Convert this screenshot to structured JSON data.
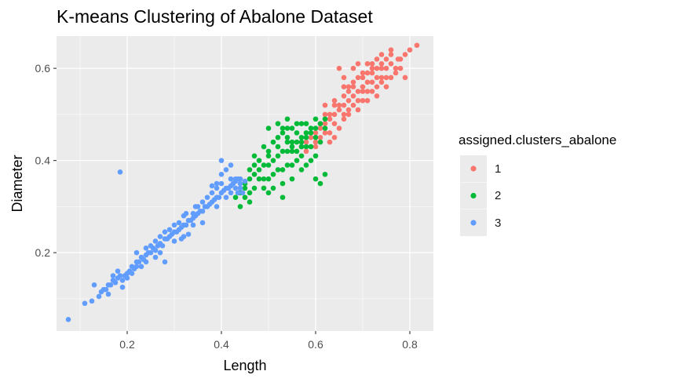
{
  "chart_data": {
    "type": "scatter",
    "title": "K-means Clustering of Abalone Dataset",
    "xlabel": "Length",
    "ylabel": "Diameter",
    "xlim": [
      0.05,
      0.85
    ],
    "ylim": [
      0.03,
      0.67
    ],
    "x_ticks": [
      0.2,
      0.4,
      0.6,
      0.8
    ],
    "y_ticks": [
      0.2,
      0.4,
      0.6
    ],
    "x_tick_labels": [
      "0.2",
      "0.4",
      "0.6",
      "0.8"
    ],
    "y_tick_labels": [
      "0.2",
      "0.4",
      "0.6"
    ],
    "grid": true,
    "legend": {
      "title": "assigned.clusters_abalone",
      "position": "right",
      "entries": [
        "1",
        "2",
        "3"
      ]
    },
    "series": [
      {
        "name": "1",
        "color": "#F8766D",
        "points": [
          [
            0.6,
            0.46
          ],
          [
            0.61,
            0.47
          ],
          [
            0.62,
            0.48
          ],
          [
            0.6,
            0.44
          ],
          [
            0.63,
            0.5
          ],
          [
            0.64,
            0.5
          ],
          [
            0.65,
            0.52
          ],
          [
            0.66,
            0.52
          ],
          [
            0.65,
            0.51
          ],
          [
            0.67,
            0.53
          ],
          [
            0.68,
            0.54
          ],
          [
            0.67,
            0.55
          ],
          [
            0.69,
            0.55
          ],
          [
            0.7,
            0.56
          ],
          [
            0.71,
            0.57
          ],
          [
            0.72,
            0.57
          ],
          [
            0.73,
            0.58
          ],
          [
            0.72,
            0.59
          ],
          [
            0.74,
            0.6
          ],
          [
            0.75,
            0.6
          ],
          [
            0.76,
            0.61
          ],
          [
            0.74,
            0.58
          ],
          [
            0.7,
            0.55
          ],
          [
            0.66,
            0.5
          ],
          [
            0.64,
            0.52
          ],
          [
            0.68,
            0.57
          ],
          [
            0.69,
            0.58
          ],
          [
            0.71,
            0.59
          ],
          [
            0.73,
            0.6
          ],
          [
            0.63,
            0.49
          ],
          [
            0.62,
            0.46
          ],
          [
            0.61,
            0.45
          ],
          [
            0.64,
            0.48
          ],
          [
            0.66,
            0.49
          ],
          [
            0.68,
            0.52
          ],
          [
            0.7,
            0.53
          ],
          [
            0.72,
            0.55
          ],
          [
            0.74,
            0.57
          ],
          [
            0.76,
            0.58
          ],
          [
            0.77,
            0.6
          ],
          [
            0.78,
            0.62
          ],
          [
            0.79,
            0.63
          ],
          [
            0.76,
            0.64
          ],
          [
            0.8,
            0.64
          ],
          [
            0.815,
            0.65
          ],
          [
            0.775,
            0.62
          ],
          [
            0.71,
            0.61
          ],
          [
            0.73,
            0.62
          ],
          [
            0.69,
            0.61
          ],
          [
            0.68,
            0.6
          ],
          [
            0.65,
            0.6
          ],
          [
            0.66,
            0.58
          ],
          [
            0.67,
            0.56
          ],
          [
            0.7,
            0.58
          ],
          [
            0.72,
            0.6
          ],
          [
            0.75,
            0.62
          ],
          [
            0.74,
            0.63
          ],
          [
            0.77,
            0.59
          ],
          [
            0.78,
            0.6
          ],
          [
            0.79,
            0.58
          ],
          [
            0.67,
            0.5
          ],
          [
            0.69,
            0.51
          ],
          [
            0.71,
            0.53
          ],
          [
            0.73,
            0.54
          ],
          [
            0.75,
            0.56
          ],
          [
            0.65,
            0.47
          ],
          [
            0.63,
            0.46
          ],
          [
            0.6,
            0.43
          ],
          [
            0.58,
            0.42
          ],
          [
            0.59,
            0.45
          ],
          [
            0.61,
            0.48
          ],
          [
            0.62,
            0.5
          ],
          [
            0.58,
            0.44
          ],
          [
            0.57,
            0.43
          ],
          [
            0.63,
            0.44
          ],
          [
            0.64,
            0.45
          ],
          [
            0.66,
            0.54
          ],
          [
            0.68,
            0.56
          ],
          [
            0.7,
            0.59
          ],
          [
            0.73,
            0.56
          ],
          [
            0.75,
            0.58
          ],
          [
            0.71,
            0.55
          ],
          [
            0.69,
            0.53
          ],
          [
            0.67,
            0.51
          ],
          [
            0.64,
            0.53
          ],
          [
            0.62,
            0.52
          ],
          [
            0.66,
            0.56
          ],
          [
            0.72,
            0.61
          ],
          [
            0.74,
            0.61
          ],
          [
            0.76,
            0.63
          ]
        ]
      },
      {
        "name": "2",
        "color": "#00BA38",
        "points": [
          [
            0.45,
            0.35
          ],
          [
            0.46,
            0.36
          ],
          [
            0.47,
            0.37
          ],
          [
            0.48,
            0.38
          ],
          [
            0.49,
            0.39
          ],
          [
            0.5,
            0.39
          ],
          [
            0.51,
            0.4
          ],
          [
            0.52,
            0.41
          ],
          [
            0.53,
            0.42
          ],
          [
            0.54,
            0.42
          ],
          [
            0.55,
            0.43
          ],
          [
            0.56,
            0.44
          ],
          [
            0.57,
            0.45
          ],
          [
            0.58,
            0.46
          ],
          [
            0.59,
            0.46
          ],
          [
            0.6,
            0.47
          ],
          [
            0.61,
            0.48
          ],
          [
            0.5,
            0.41
          ],
          [
            0.52,
            0.43
          ],
          [
            0.54,
            0.44
          ],
          [
            0.56,
            0.46
          ],
          [
            0.58,
            0.48
          ],
          [
            0.53,
            0.46
          ],
          [
            0.55,
            0.47
          ],
          [
            0.57,
            0.48
          ],
          [
            0.51,
            0.37
          ],
          [
            0.53,
            0.38
          ],
          [
            0.55,
            0.39
          ],
          [
            0.57,
            0.41
          ],
          [
            0.59,
            0.43
          ],
          [
            0.49,
            0.36
          ],
          [
            0.47,
            0.34
          ],
          [
            0.46,
            0.33
          ],
          [
            0.45,
            0.32
          ],
          [
            0.44,
            0.33
          ],
          [
            0.48,
            0.4
          ],
          [
            0.5,
            0.42
          ],
          [
            0.52,
            0.45
          ],
          [
            0.54,
            0.47
          ],
          [
            0.56,
            0.48
          ],
          [
            0.5,
            0.47
          ],
          [
            0.52,
            0.48
          ],
          [
            0.54,
            0.49
          ],
          [
            0.53,
            0.47
          ],
          [
            0.55,
            0.44
          ],
          [
            0.57,
            0.44
          ],
          [
            0.6,
            0.45
          ],
          [
            0.61,
            0.44
          ],
          [
            0.58,
            0.43
          ],
          [
            0.59,
            0.4
          ],
          [
            0.6,
            0.41
          ],
          [
            0.62,
            0.47
          ],
          [
            0.62,
            0.49
          ],
          [
            0.6,
            0.49
          ],
          [
            0.47,
            0.39
          ],
          [
            0.46,
            0.38
          ],
          [
            0.48,
            0.36
          ],
          [
            0.5,
            0.36
          ],
          [
            0.52,
            0.38
          ],
          [
            0.49,
            0.34
          ],
          [
            0.51,
            0.34
          ],
          [
            0.53,
            0.35
          ],
          [
            0.55,
            0.36
          ],
          [
            0.57,
            0.38
          ],
          [
            0.58,
            0.39
          ],
          [
            0.6,
            0.36
          ],
          [
            0.61,
            0.35
          ],
          [
            0.62,
            0.37
          ],
          [
            0.56,
            0.4
          ],
          [
            0.54,
            0.39
          ],
          [
            0.51,
            0.44
          ],
          [
            0.49,
            0.43
          ],
          [
            0.47,
            0.41
          ],
          [
            0.5,
            0.33
          ],
          [
            0.46,
            0.31
          ],
          [
            0.44,
            0.3
          ],
          [
            0.45,
            0.34
          ],
          [
            0.43,
            0.32
          ],
          [
            0.53,
            0.32
          ],
          [
            0.55,
            0.42
          ],
          [
            0.57,
            0.43
          ],
          [
            0.59,
            0.47
          ],
          [
            0.58,
            0.45
          ],
          [
            0.56,
            0.42
          ],
          [
            0.54,
            0.45
          ]
        ]
      },
      {
        "name": "3",
        "color": "#619CFF",
        "points": [
          [
            0.075,
            0.055
          ],
          [
            0.11,
            0.09
          ],
          [
            0.125,
            0.095
          ],
          [
            0.13,
            0.13
          ],
          [
            0.14,
            0.105
          ],
          [
            0.145,
            0.115
          ],
          [
            0.15,
            0.12
          ],
          [
            0.155,
            0.12
          ],
          [
            0.16,
            0.13
          ],
          [
            0.165,
            0.13
          ],
          [
            0.17,
            0.14
          ],
          [
            0.175,
            0.135
          ],
          [
            0.18,
            0.145
          ],
          [
            0.185,
            0.15
          ],
          [
            0.185,
            0.375
          ],
          [
            0.19,
            0.14
          ],
          [
            0.195,
            0.15
          ],
          [
            0.2,
            0.155
          ],
          [
            0.205,
            0.16
          ],
          [
            0.21,
            0.17
          ],
          [
            0.215,
            0.165
          ],
          [
            0.22,
            0.18
          ],
          [
            0.225,
            0.18
          ],
          [
            0.23,
            0.19
          ],
          [
            0.235,
            0.185
          ],
          [
            0.24,
            0.195
          ],
          [
            0.245,
            0.2
          ],
          [
            0.25,
            0.2
          ],
          [
            0.255,
            0.21
          ],
          [
            0.26,
            0.205
          ],
          [
            0.265,
            0.215
          ],
          [
            0.27,
            0.22
          ],
          [
            0.275,
            0.215
          ],
          [
            0.28,
            0.23
          ],
          [
            0.285,
            0.23
          ],
          [
            0.29,
            0.235
          ],
          [
            0.295,
            0.24
          ],
          [
            0.3,
            0.245
          ],
          [
            0.305,
            0.245
          ],
          [
            0.31,
            0.25
          ],
          [
            0.315,
            0.255
          ],
          [
            0.32,
            0.26
          ],
          [
            0.325,
            0.26
          ],
          [
            0.33,
            0.27
          ],
          [
            0.335,
            0.27
          ],
          [
            0.34,
            0.275
          ],
          [
            0.345,
            0.28
          ],
          [
            0.35,
            0.285
          ],
          [
            0.355,
            0.29
          ],
          [
            0.36,
            0.29
          ],
          [
            0.365,
            0.3
          ],
          [
            0.37,
            0.3
          ],
          [
            0.375,
            0.305
          ],
          [
            0.38,
            0.31
          ],
          [
            0.385,
            0.315
          ],
          [
            0.39,
            0.32
          ],
          [
            0.395,
            0.32
          ],
          [
            0.4,
            0.33
          ],
          [
            0.405,
            0.335
          ],
          [
            0.41,
            0.34
          ],
          [
            0.415,
            0.34
          ],
          [
            0.42,
            0.345
          ],
          [
            0.425,
            0.35
          ],
          [
            0.43,
            0.355
          ],
          [
            0.435,
            0.36
          ],
          [
            0.44,
            0.36
          ],
          [
            0.3,
            0.225
          ],
          [
            0.32,
            0.235
          ],
          [
            0.31,
            0.265
          ],
          [
            0.34,
            0.285
          ],
          [
            0.29,
            0.25
          ],
          [
            0.27,
            0.2
          ],
          [
            0.25,
            0.215
          ],
          [
            0.23,
            0.17
          ],
          [
            0.2,
            0.145
          ],
          [
            0.21,
            0.155
          ],
          [
            0.18,
            0.16
          ],
          [
            0.17,
            0.15
          ],
          [
            0.16,
            0.11
          ],
          [
            0.28,
            0.18
          ],
          [
            0.26,
            0.225
          ],
          [
            0.36,
            0.265
          ],
          [
            0.37,
            0.32
          ],
          [
            0.38,
            0.33
          ],
          [
            0.35,
            0.3
          ],
          [
            0.33,
            0.24
          ],
          [
            0.39,
            0.3
          ],
          [
            0.4,
            0.35
          ],
          [
            0.41,
            0.32
          ],
          [
            0.42,
            0.33
          ],
          [
            0.43,
            0.36
          ],
          [
            0.44,
            0.34
          ],
          [
            0.42,
            0.36
          ],
          [
            0.4,
            0.37
          ],
          [
            0.41,
            0.38
          ],
          [
            0.42,
            0.39
          ],
          [
            0.4,
            0.4
          ],
          [
            0.39,
            0.35
          ],
          [
            0.38,
            0.345
          ],
          [
            0.36,
            0.31
          ],
          [
            0.34,
            0.26
          ],
          [
            0.32,
            0.28
          ],
          [
            0.3,
            0.26
          ],
          [
            0.28,
            0.245
          ],
          [
            0.27,
            0.235
          ],
          [
            0.26,
            0.19
          ],
          [
            0.24,
            0.18
          ],
          [
            0.22,
            0.17
          ],
          [
            0.19,
            0.125
          ],
          [
            0.24,
            0.21
          ],
          [
            0.22,
            0.2
          ],
          [
            0.315,
            0.23
          ],
          [
            0.325,
            0.285
          ],
          [
            0.345,
            0.3
          ],
          [
            0.43,
            0.34
          ],
          [
            0.435,
            0.33
          ],
          [
            0.44,
            0.35
          ],
          [
            0.45,
            0.355
          ],
          [
            0.445,
            0.33
          ],
          [
            0.39,
            0.34
          ]
        ]
      }
    ]
  }
}
